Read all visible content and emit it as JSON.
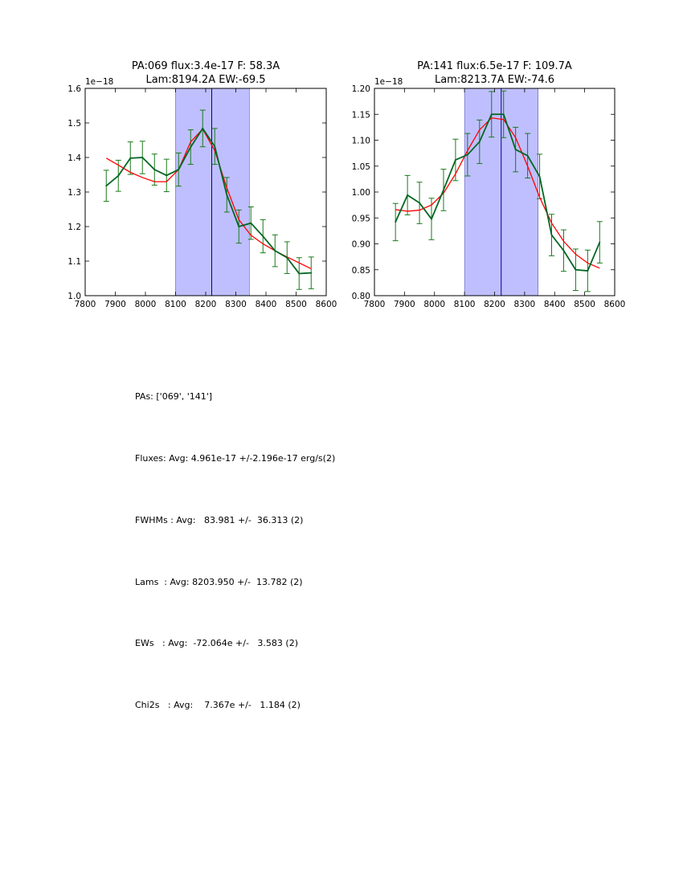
{
  "chart_data": [
    {
      "type": "line",
      "title_line1": "PA:069 flux:3.4e-17 F: 58.3A",
      "title_line2": "Lam:8194.2A EW:-69.5",
      "offset_label": "1e−18",
      "xlim": [
        7800,
        8600
      ],
      "ylim": [
        1.0,
        1.6
      ],
      "xticks": [
        7800,
        7900,
        8000,
        8100,
        8200,
        8300,
        8400,
        8500,
        8600
      ],
      "xtick_labels": [
        "7800",
        "7900",
        "8000",
        "8100",
        "8200",
        "8300",
        "8400",
        "8500",
        "8600"
      ],
      "yticks": [
        1.0,
        1.1,
        1.2,
        1.3,
        1.4,
        1.5,
        1.6
      ],
      "ytick_labels": [
        "1.0",
        "1.1",
        "1.2",
        "1.3",
        "1.4",
        "1.5",
        "1.6"
      ],
      "shaded_region": [
        8100,
        8345
      ],
      "center_line": 8220,
      "colors": {
        "data": "#006622",
        "errorbar": "#1a7a1a",
        "model": "#ff0000",
        "shade": "#8080ff",
        "center": "#00008b"
      },
      "series": [
        {
          "name": "data",
          "x": [
            7870,
            7910,
            7950,
            7990,
            8030,
            8070,
            8110,
            8150,
            8190,
            8230,
            8270,
            8310,
            8350,
            8390,
            8430,
            8470,
            8510,
            8550
          ],
          "y": [
            1.318,
            1.347,
            1.398,
            1.4,
            1.365,
            1.348,
            1.365,
            1.43,
            1.484,
            1.432,
            1.292,
            1.2,
            1.21,
            1.172,
            1.13,
            1.11,
            1.064,
            1.066
          ],
          "err": [
            0.045,
            0.045,
            0.047,
            0.047,
            0.045,
            0.047,
            0.048,
            0.05,
            0.053,
            0.052,
            0.05,
            0.048,
            0.047,
            0.048,
            0.046,
            0.046,
            0.046,
            0.046
          ]
        },
        {
          "name": "model",
          "x": [
            7870,
            7910,
            7950,
            7990,
            8030,
            8070,
            8110,
            8150,
            8190,
            8230,
            8270,
            8310,
            8350,
            8390,
            8430,
            8470,
            8510,
            8550
          ],
          "y": [
            1.398,
            1.378,
            1.357,
            1.342,
            1.33,
            1.33,
            1.365,
            1.445,
            1.482,
            1.42,
            1.312,
            1.22,
            1.175,
            1.15,
            1.13,
            1.112,
            1.095,
            1.078
          ]
        }
      ]
    },
    {
      "type": "line",
      "title_line1": "PA:141 flux:6.5e-17 F: 109.7A",
      "title_line2": "Lam:8213.7A EW:-74.6",
      "offset_label": "1e−18",
      "xlim": [
        7800,
        8600
      ],
      "ylim": [
        0.8,
        1.2
      ],
      "xticks": [
        7800,
        7900,
        8000,
        8100,
        8200,
        8300,
        8400,
        8500,
        8600
      ],
      "xtick_labels": [
        "7800",
        "7900",
        "8000",
        "8100",
        "8200",
        "8300",
        "8400",
        "8500",
        "8600"
      ],
      "yticks": [
        0.8,
        0.85,
        0.9,
        0.95,
        1.0,
        1.05,
        1.1,
        1.15,
        1.2
      ],
      "ytick_labels": [
        "0.80",
        "0.85",
        "0.90",
        "0.95",
        "1.00",
        "1.05",
        "1.10",
        "1.15",
        "1.20"
      ],
      "shaded_region": [
        8100,
        8345
      ],
      "center_line": 8222,
      "colors": {
        "data": "#006622",
        "errorbar": "#1a7a1a",
        "model": "#ff0000",
        "shade": "#8080ff",
        "center": "#00008b"
      },
      "series": [
        {
          "name": "data",
          "x": [
            7870,
            7910,
            7950,
            7990,
            8030,
            8070,
            8110,
            8150,
            8190,
            8230,
            8270,
            8310,
            8350,
            8390,
            8430,
            8470,
            8510,
            8550
          ],
          "y": [
            0.942,
            0.994,
            0.979,
            0.948,
            1.004,
            1.062,
            1.072,
            1.097,
            1.15,
            1.15,
            1.082,
            1.07,
            1.03,
            0.917,
            0.887,
            0.85,
            0.848,
            0.903
          ],
          "err": [
            0.036,
            0.038,
            0.04,
            0.04,
            0.04,
            0.04,
            0.041,
            0.042,
            0.044,
            0.045,
            0.043,
            0.043,
            0.043,
            0.04,
            0.04,
            0.04,
            0.04,
            0.04
          ]
        },
        {
          "name": "model",
          "x": [
            7870,
            7910,
            7950,
            7990,
            8030,
            8070,
            8110,
            8150,
            8190,
            8230,
            8270,
            8310,
            8350,
            8390,
            8430,
            8470,
            8510,
            8550
          ],
          "y": [
            0.966,
            0.963,
            0.965,
            0.975,
            0.998,
            1.035,
            1.08,
            1.12,
            1.143,
            1.14,
            1.105,
            1.05,
            0.99,
            0.94,
            0.905,
            0.88,
            0.863,
            0.853
          ]
        }
      ]
    }
  ],
  "summary": {
    "pas": "PAs: ['069', '141']",
    "fluxes": "Fluxes: Avg: 4.961e-17 +/-2.196e-17 erg/s(2)",
    "fwhms": "FWHMs : Avg:   83.981 +/-  36.313 (2)",
    "lams": "Lams  : Avg: 8203.950 +/-  13.782 (2)",
    "ews": "EWs   : Avg:  -72.064e +/-   3.583 (2)",
    "chi2s": "Chi2s   : Avg:    7.367e +/-   1.184 (2)"
  }
}
